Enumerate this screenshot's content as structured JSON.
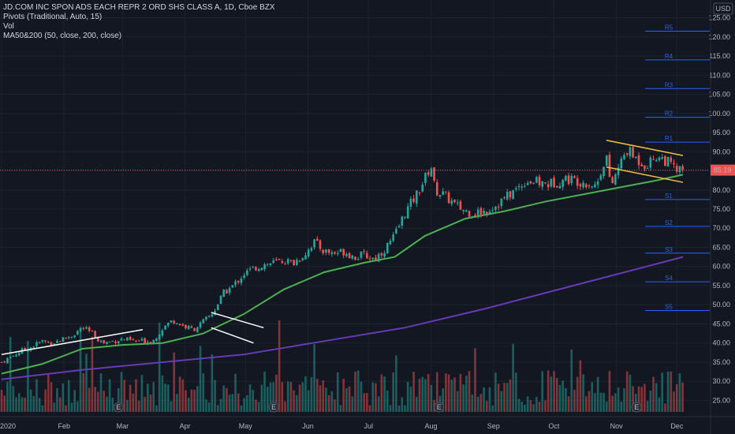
{
  "chart_data": {
    "type": "candlestick",
    "title": "JD.COM INC SPON ADS EACH REPR 2 ORD SHS CLASS A, 1D, Cboe BZX",
    "indicators": [
      "Pivots (Traditional, Auto, 15)",
      "Vol",
      "MA50&200 (50, close, 200, close)"
    ],
    "currency": "USD",
    "last_price": "85.19",
    "y_ticks": [
      "125.00",
      "120.00",
      "115.00",
      "110.00",
      "105.00",
      "100.00",
      "95.00",
      "90.00",
      "85.00",
      "80.00",
      "75.00",
      "70.00",
      "65.00",
      "60.00",
      "55.00",
      "50.00",
      "45.00",
      "40.00",
      "35.00",
      "30.00",
      "25.00"
    ],
    "x_ticks": [
      "2020",
      "Feb",
      "Mar",
      "Apr",
      "May",
      "Jun",
      "Jul",
      "Aug",
      "Sep",
      "Oct",
      "Nov",
      "Dec"
    ],
    "ylim": [
      22,
      128
    ],
    "pivots": [
      {
        "label": "R5",
        "value": 121.5
      },
      {
        "label": "R4",
        "value": 114.0
      },
      {
        "label": "R3",
        "value": 106.5
      },
      {
        "label": "R2",
        "value": 99.0
      },
      {
        "label": "R1",
        "value": 92.5
      },
      {
        "label": "S1",
        "value": 77.5
      },
      {
        "label": "S2",
        "value": 70.5
      },
      {
        "label": "S3",
        "value": 63.5
      },
      {
        "label": "S4",
        "value": 56.0
      },
      {
        "label": "S5",
        "value": 48.5
      }
    ],
    "close_series": [
      {
        "d": 0,
        "v": 35.0
      },
      {
        "d": 5,
        "v": 36.5
      },
      {
        "d": 10,
        "v": 38.0
      },
      {
        "d": 15,
        "v": 39.0
      },
      {
        "d": 20,
        "v": 40.5
      },
      {
        "d": 25,
        "v": 40.0
      },
      {
        "d": 30,
        "v": 41.0
      },
      {
        "d": 35,
        "v": 42.0
      },
      {
        "d": 40,
        "v": 44.0
      },
      {
        "d": 45,
        "v": 42.5
      },
      {
        "d": 50,
        "v": 40.0
      },
      {
        "d": 55,
        "v": 40.5
      },
      {
        "d": 60,
        "v": 41.0
      },
      {
        "d": 65,
        "v": 40.5
      },
      {
        "d": 70,
        "v": 40.5
      },
      {
        "d": 75,
        "v": 40.5
      },
      {
        "d": 80,
        "v": 44.0
      },
      {
        "d": 85,
        "v": 46.0
      },
      {
        "d": 90,
        "v": 44.5
      },
      {
        "d": 95,
        "v": 43.5
      },
      {
        "d": 100,
        "v": 45.5
      },
      {
        "d": 105,
        "v": 48.0
      },
      {
        "d": 110,
        "v": 53.0
      },
      {
        "d": 115,
        "v": 55.0
      },
      {
        "d": 120,
        "v": 58.0
      },
      {
        "d": 125,
        "v": 59.5
      },
      {
        "d": 130,
        "v": 60.5
      },
      {
        "d": 135,
        "v": 61.0
      },
      {
        "d": 140,
        "v": 61.5
      },
      {
        "d": 145,
        "v": 61.0
      },
      {
        "d": 150,
        "v": 63.0
      },
      {
        "d": 155,
        "v": 66.5
      },
      {
        "d": 160,
        "v": 64.0
      },
      {
        "d": 165,
        "v": 63.5
      },
      {
        "d": 170,
        "v": 64.0
      },
      {
        "d": 175,
        "v": 62.5
      },
      {
        "d": 180,
        "v": 63.0
      },
      {
        "d": 185,
        "v": 62.0
      },
      {
        "d": 190,
        "v": 64.5
      },
      {
        "d": 195,
        "v": 68.0
      },
      {
        "d": 200,
        "v": 74.0
      },
      {
        "d": 205,
        "v": 78.0
      },
      {
        "d": 210,
        "v": 83.0
      },
      {
        "d": 213,
        "v": 86.5
      },
      {
        "d": 215,
        "v": 80.0
      },
      {
        "d": 220,
        "v": 78.5
      },
      {
        "d": 225,
        "v": 76.0
      },
      {
        "d": 230,
        "v": 74.5
      },
      {
        "d": 235,
        "v": 74.0
      },
      {
        "d": 240,
        "v": 74.5
      },
      {
        "d": 245,
        "v": 76.0
      },
      {
        "d": 250,
        "v": 78.0
      },
      {
        "d": 255,
        "v": 80.0
      },
      {
        "d": 260,
        "v": 82.5
      },
      {
        "d": 265,
        "v": 82.0
      },
      {
        "d": 270,
        "v": 81.5
      },
      {
        "d": 275,
        "v": 82.0
      },
      {
        "d": 280,
        "v": 83.0
      },
      {
        "d": 285,
        "v": 82.5
      },
      {
        "d": 290,
        "v": 82.0
      },
      {
        "d": 295,
        "v": 81.0
      },
      {
        "d": 300,
        "v": 89.5
      },
      {
        "d": 302,
        "v": 80.5
      },
      {
        "d": 305,
        "v": 84.5
      },
      {
        "d": 310,
        "v": 90.5
      },
      {
        "d": 315,
        "v": 88.0
      },
      {
        "d": 320,
        "v": 86.5
      },
      {
        "d": 325,
        "v": 89.0
      },
      {
        "d": 330,
        "v": 87.5
      },
      {
        "d": 335,
        "v": 85.0
      },
      {
        "d": 338,
        "v": 85.19
      }
    ],
    "ma50": [
      {
        "d": 0,
        "v": 32.0
      },
      {
        "d": 20,
        "v": 34.5
      },
      {
        "d": 40,
        "v": 38.5
      },
      {
        "d": 60,
        "v": 39.5
      },
      {
        "d": 80,
        "v": 40.0
      },
      {
        "d": 100,
        "v": 42.5
      },
      {
        "d": 120,
        "v": 47.5
      },
      {
        "d": 140,
        "v": 54.0
      },
      {
        "d": 160,
        "v": 58.5
      },
      {
        "d": 180,
        "v": 61.0
      },
      {
        "d": 195,
        "v": 62.5
      },
      {
        "d": 210,
        "v": 68.0
      },
      {
        "d": 230,
        "v": 72.5
      },
      {
        "d": 250,
        "v": 74.5
      },
      {
        "d": 270,
        "v": 77.0
      },
      {
        "d": 290,
        "v": 79.0
      },
      {
        "d": 310,
        "v": 81.0
      },
      {
        "d": 325,
        "v": 82.5
      },
      {
        "d": 338,
        "v": 84.0
      }
    ],
    "ma200": [
      {
        "d": 0,
        "v": 30.5
      },
      {
        "d": 40,
        "v": 33.0
      },
      {
        "d": 80,
        "v": 35.0
      },
      {
        "d": 120,
        "v": 37.0
      },
      {
        "d": 160,
        "v": 40.5
      },
      {
        "d": 200,
        "v": 44.0
      },
      {
        "d": 240,
        "v": 49.0
      },
      {
        "d": 280,
        "v": 54.5
      },
      {
        "d": 320,
        "v": 60.0
      },
      {
        "d": 338,
        "v": 62.5
      }
    ],
    "earnings_markers": [
      {
        "label": "E",
        "d": 58
      },
      {
        "label": "E",
        "d": 135
      },
      {
        "label": "E",
        "d": 217
      },
      {
        "label": "E",
        "d": 315
      }
    ],
    "volume_scale_max": 100,
    "trendlines": [
      {
        "color": "#ffffff",
        "points": [
          {
            "d": 0,
            "v": 37.0
          },
          {
            "d": 70,
            "v": 43.5
          }
        ]
      },
      {
        "color": "#ffffff",
        "points": [
          {
            "d": 104,
            "v": 48.0
          },
          {
            "d": 130,
            "v": 44.0
          }
        ]
      },
      {
        "color": "#ffffff",
        "points": [
          {
            "d": 104,
            "v": 44.0
          },
          {
            "d": 125,
            "v": 40.0
          }
        ]
      },
      {
        "color": "#f5c042",
        "points": [
          {
            "d": 300,
            "v": 93.0
          },
          {
            "d": 338,
            "v": 89.0
          }
        ]
      },
      {
        "color": "#f5c042",
        "points": [
          {
            "d": 300,
            "v": 86.0
          },
          {
            "d": 338,
            "v": 82.0
          }
        ]
      }
    ],
    "colors": {
      "up": "#26a69a",
      "down": "#ef5350",
      "ma50": "#4caf50",
      "ma200": "#673ab7",
      "pivot": "#2962ff",
      "last": "#ef5350",
      "grid": "#1e222d"
    }
  }
}
